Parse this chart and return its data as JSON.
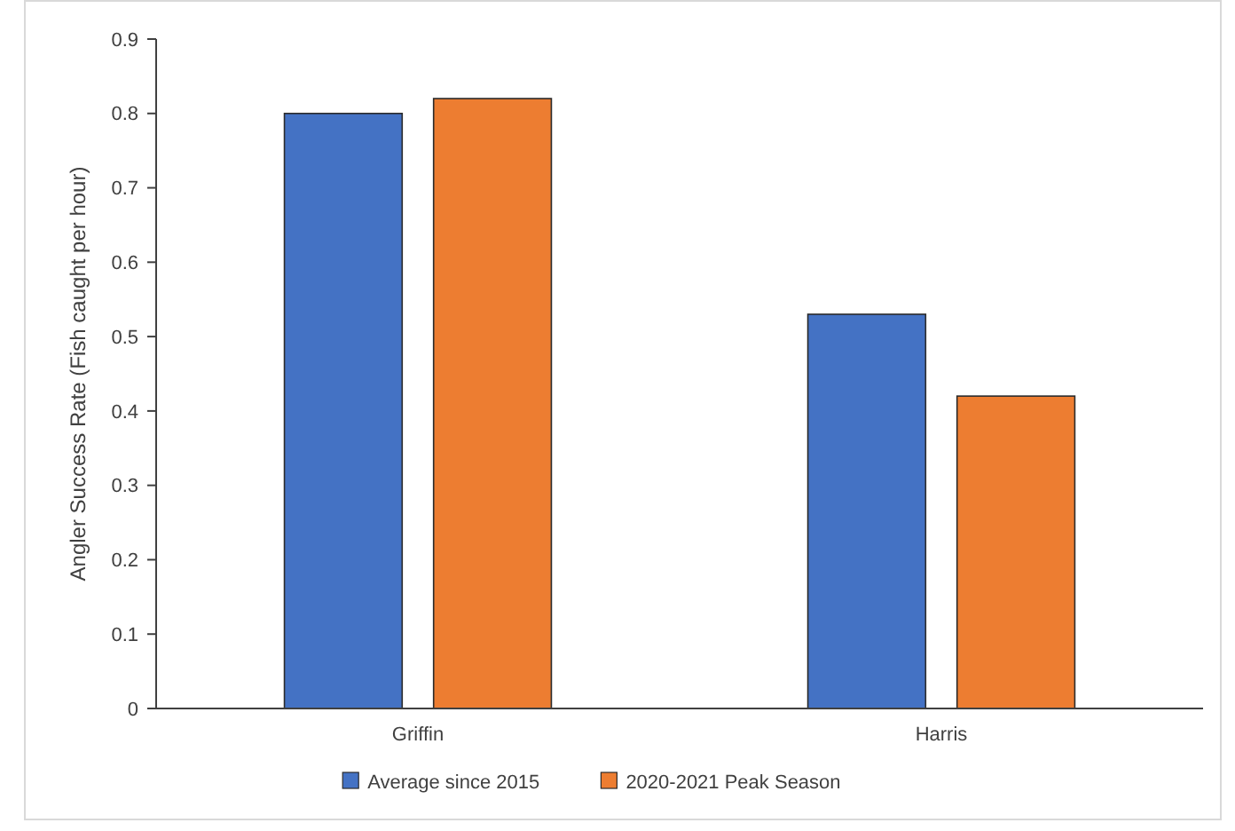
{
  "chart_data": {
    "type": "bar",
    "ylabel": "Angler Success Rate (Fish caught per hour)",
    "categories": [
      "Griffin",
      "Harris"
    ],
    "series": [
      {
        "name": "Average since 2015",
        "color": "#4472c4",
        "values": [
          0.8,
          0.53
        ]
      },
      {
        "name": "2020-2021 Peak Season",
        "color": "#ed7d31",
        "values": [
          0.82,
          0.42
        ]
      }
    ],
    "ylim": [
      0,
      0.9
    ],
    "yticks": [
      {
        "value": 0,
        "label": "0"
      },
      0.1,
      0.2,
      0.3,
      0.4,
      0.5,
      0.6,
      0.7,
      0.8,
      0.9
    ],
    "grid": false,
    "legend": "bottom"
  }
}
